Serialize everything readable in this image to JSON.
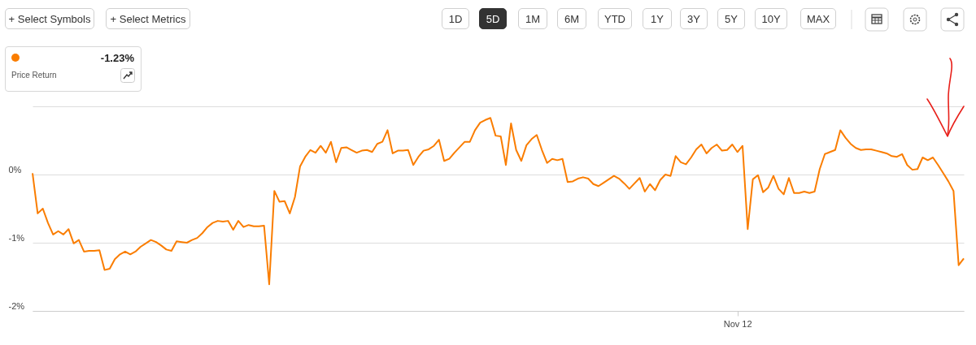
{
  "chart_data": {
    "type": "line",
    "annotations": [
      "+ Select Symbols",
      "+ Select Metrics",
      "1D",
      "5D",
      "1M",
      "6M",
      "YTD",
      "1Y",
      "3Y",
      "5Y",
      "10Y",
      "MAX",
      "-1.23%",
      "Price Return"
    ],
    "categories": [
      null,
      null,
      null,
      null,
      null,
      null,
      null,
      null,
      null,
      null,
      null,
      null,
      null,
      null,
      null,
      null,
      null,
      null,
      null,
      null,
      null,
      null,
      null,
      null,
      null,
      null,
      null,
      null,
      null,
      null,
      null,
      null,
      null,
      null,
      null,
      null,
      null,
      null,
      null,
      null,
      null,
      null,
      null,
      null,
      null,
      null,
      null,
      null,
      null,
      null,
      null,
      null,
      null,
      null,
      null,
      null,
      null,
      null,
      null,
      null,
      null,
      null,
      null,
      null,
      null,
      null,
      null,
      null,
      null,
      null,
      null,
      null,
      null,
      null,
      null,
      null,
      null,
      null,
      null,
      null,
      null,
      null,
      null,
      null,
      null,
      null,
      null,
      null,
      null,
      null,
      null,
      null,
      null,
      null,
      null,
      null,
      null,
      null,
      null,
      null,
      null,
      null,
      null,
      null,
      null,
      null,
      null,
      null,
      null,
      null,
      null,
      null,
      null,
      null,
      null,
      null,
      null,
      null,
      null,
      null,
      null,
      null,
      null,
      null,
      null,
      null,
      null,
      null,
      null,
      null,
      null,
      null,
      null,
      null,
      null,
      null,
      null,
      "Nov 12",
      null,
      null,
      null,
      null,
      null,
      null,
      null,
      null,
      null,
      null,
      null,
      null,
      null,
      null,
      null,
      null,
      null,
      null,
      null,
      null,
      null,
      null,
      null,
      null,
      null,
      null,
      null,
      null,
      null,
      null,
      null,
      null,
      null,
      null,
      null,
      null,
      null,
      null,
      null,
      null,
      null,
      null,
      null,
      null
    ],
    "ylim": [
      -2,
      1
    ],
    "yticks": [
      {
        "value": -2,
        "label": "-2%"
      },
      {
        "value": -1,
        "label": "-1%"
      },
      {
        "value": 0,
        "label": "0%"
      },
      {
        "value": 1,
        "label": null
      }
    ],
    "grid": "y",
    "line_style": "solid",
    "marker": "none",
    "series": [
      {
        "color": "#fa7d00",
        "values": [
          0.02,
          -0.57,
          -0.5,
          -0.71,
          -0.88,
          -0.83,
          -0.88,
          -0.8,
          -1.01,
          -0.96,
          -1.13,
          -1.12,
          -1.12,
          -1.11,
          -1.4,
          -1.38,
          -1.24,
          -1.17,
          -1.13,
          -1.17,
          -1.13,
          -1.06,
          -1.01,
          -0.96,
          -0.99,
          -1.04,
          -1.1,
          -1.12,
          -0.98,
          -0.99,
          -1.0,
          -0.96,
          -0.93,
          -0.86,
          -0.77,
          -0.71,
          -0.68,
          -0.69,
          -0.68,
          -0.81,
          -0.68,
          -0.77,
          -0.74,
          -0.76,
          -0.76,
          -0.75,
          -1.61,
          -0.24,
          -0.4,
          -0.39,
          -0.57,
          -0.33,
          0.12,
          0.26,
          0.36,
          0.32,
          0.42,
          0.32,
          0.48,
          0.18,
          0.39,
          0.4,
          0.36,
          0.32,
          0.35,
          0.36,
          0.33,
          0.45,
          0.48,
          0.65,
          0.31,
          0.35,
          0.35,
          0.36,
          0.14,
          0.26,
          0.35,
          0.37,
          0.42,
          0.51,
          0.2,
          0.23,
          0.32,
          0.4,
          0.48,
          0.48,
          0.65,
          0.76,
          0.8,
          0.83,
          0.57,
          0.56,
          0.14,
          0.75,
          0.36,
          0.2,
          0.43,
          0.52,
          0.58,
          0.36,
          0.17,
          0.23,
          0.21,
          0.23,
          -0.11,
          -0.1,
          -0.06,
          -0.04,
          -0.06,
          -0.14,
          -0.17,
          -0.12,
          -0.07,
          -0.02,
          -0.06,
          -0.13,
          -0.21,
          -0.13,
          -0.05,
          -0.25,
          -0.14,
          -0.23,
          -0.08,
          0.0,
          -0.02,
          0.27,
          0.18,
          0.15,
          0.25,
          0.37,
          0.44,
          0.31,
          0.39,
          0.44,
          0.35,
          0.36,
          0.44,
          0.33,
          0.42,
          -0.8,
          -0.07,
          -0.01,
          -0.26,
          -0.19,
          -0.02,
          -0.21,
          -0.29,
          -0.05,
          -0.27,
          -0.27,
          -0.25,
          -0.27,
          -0.25,
          0.08,
          0.3,
          0.33,
          0.36,
          0.65,
          0.54,
          0.45,
          0.39,
          0.36,
          0.37,
          0.37,
          0.35,
          0.33,
          0.31,
          0.27,
          0.26,
          0.3,
          0.14,
          0.07,
          0.08,
          0.25,
          0.21,
          0.25,
          0.14,
          0.02,
          -0.1,
          -0.24,
          -1.33,
          -1.23
        ]
      }
    ]
  }
}
